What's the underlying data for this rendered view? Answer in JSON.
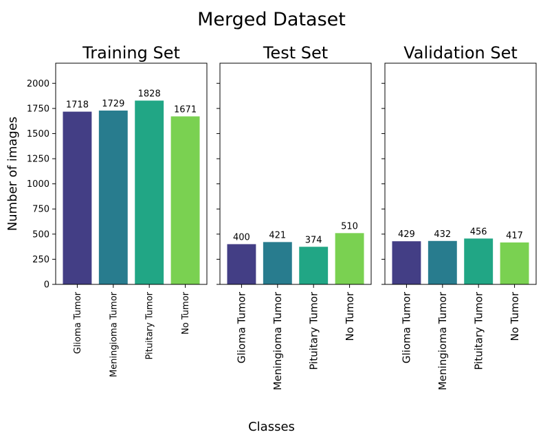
{
  "suptitle": "Merged Dataset",
  "shared_xlabel": "Classes",
  "shared_ylabel": "Number of images",
  "palette": [
    "#433e85",
    "#287c8e",
    "#21a685",
    "#7ad151"
  ],
  "chart_data": [
    {
      "type": "bar",
      "title": "Training Set",
      "categories": [
        "Glioma Tumor",
        "Meningioma Tumor",
        "Pituitary Tumor",
        "No Tumor"
      ],
      "values": [
        1718,
        1729,
        1828,
        1671
      ],
      "ylabel": "Number of images",
      "xlabel": "",
      "ylim": [
        0,
        2200
      ],
      "yticks": [
        0,
        250,
        500,
        750,
        1000,
        1250,
        1500,
        1750,
        2000
      ],
      "grid": false,
      "legend": "none"
    },
    {
      "type": "bar",
      "title": "Test Set",
      "categories": [
        "Glioma Tumor",
        "Meningioma Tumor",
        "Pituitary Tumor",
        "No Tumor"
      ],
      "values": [
        400,
        421,
        374,
        510
      ],
      "ylabel": "",
      "xlabel": "",
      "ylim": [
        0,
        2200
      ],
      "yticks": [
        0,
        250,
        500,
        750,
        1000,
        1250,
        1500,
        1750,
        2000
      ],
      "grid": false,
      "legend": "none"
    },
    {
      "type": "bar",
      "title": "Validation Set",
      "categories": [
        "Glioma Tumor",
        "Meningioma Tumor",
        "Pituitary Tumor",
        "No Tumor"
      ],
      "values": [
        429,
        432,
        456,
        417
      ],
      "ylabel": "",
      "xlabel": "",
      "ylim": [
        0,
        2200
      ],
      "yticks": [
        0,
        250,
        500,
        750,
        1000,
        1250,
        1500,
        1750,
        2000
      ],
      "grid": false,
      "legend": "none"
    }
  ]
}
